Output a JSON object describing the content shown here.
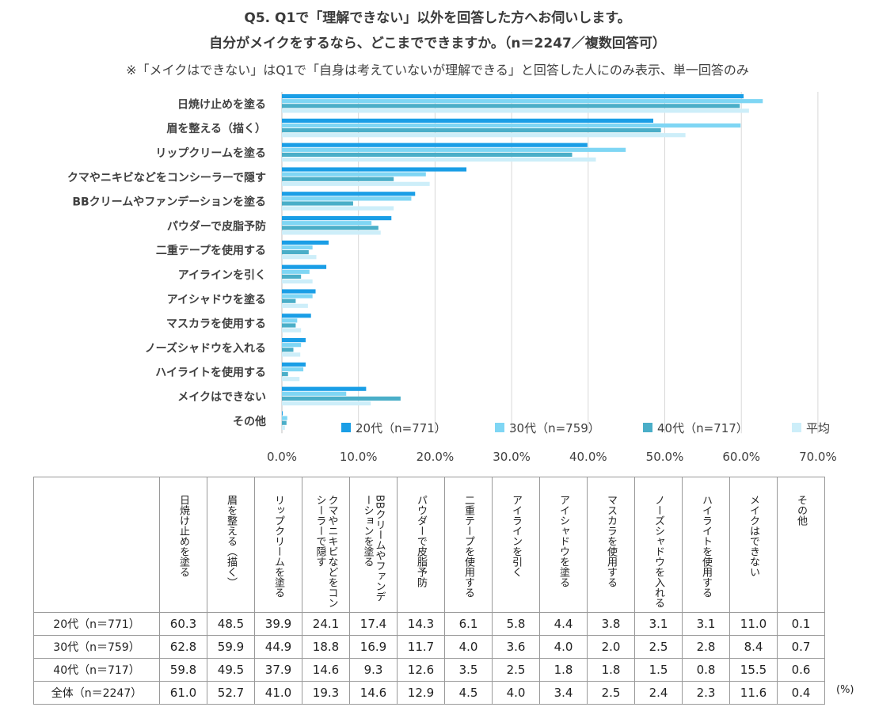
{
  "title_line1": "Q5. Q1で「理解できない」以外を回答した方へお伺いします。",
  "title_line2": "自分がメイクをするなら、どこまでできますか。（n＝2247／複数回答可）",
  "note": "※「メイクはできない」はQ1で「自身は考えていないが理解できる」と回答した人にのみ表示、単一回答のみ",
  "unit_label": "(%)",
  "table_corner": "",
  "colors": {
    "s20": "#1a9ee6",
    "s30": "#7fd6f4",
    "s40": "#4aaec8",
    "avg": "#cdeef9",
    "grid": "#d9d9d9",
    "axis": "#bfbfbf"
  },
  "chart_data": {
    "type": "bar",
    "orientation": "horizontal",
    "categories": [
      "日焼け止めを塗る",
      "眉を整える（描く）",
      "リップクリームを塗る",
      "クマやニキビなどをコンシーラーで隠す",
      "BBクリームやファンデーションを塗る",
      "パウダーで皮脂予防",
      "二重テープを使用する",
      "アイラインを引く",
      "アイシャドウを塗る",
      "マスカラを使用する",
      "ノーズシャドウを入れる",
      "ハイライトを使用する",
      "メイクはできない",
      "その他"
    ],
    "series": [
      {
        "name": "20代（n=771）",
        "values": [
          60.3,
          48.5,
          39.9,
          24.1,
          17.4,
          14.3,
          6.1,
          5.8,
          4.4,
          3.8,
          3.1,
          3.1,
          11.0,
          0.1
        ]
      },
      {
        "name": "30代（n=759）",
        "values": [
          62.8,
          59.9,
          44.9,
          18.8,
          16.9,
          11.7,
          4.0,
          3.6,
          4.0,
          2.0,
          2.5,
          2.8,
          8.4,
          0.7
        ]
      },
      {
        "name": "40代（n=717）",
        "values": [
          59.8,
          49.5,
          37.9,
          14.6,
          9.3,
          12.6,
          3.5,
          2.5,
          1.8,
          1.8,
          1.5,
          0.8,
          15.5,
          0.6
        ]
      },
      {
        "name": "平均",
        "values": [
          61.0,
          52.7,
          41.0,
          19.3,
          14.6,
          12.9,
          4.5,
          4.0,
          3.4,
          2.5,
          2.4,
          2.3,
          11.6,
          0.4
        ]
      }
    ],
    "x_ticks": [
      "0.0%",
      "10.0%",
      "20.0%",
      "30.0%",
      "40.0%",
      "50.0%",
      "60.0%",
      "70.0%"
    ],
    "xlim": [
      0,
      70
    ],
    "grid": true,
    "legend_position": "bottom-right"
  },
  "table": {
    "headers": [
      "日焼け止めを塗る",
      "眉を整える（描く）",
      "リップクリームを塗る",
      "クマやニキビなどをコンシーラーで隠す",
      "BBクリームやファンデーションを塗る",
      "パウダーで皮脂予防",
      "二重テープを使用する",
      "アイラインを引く",
      "アイシャドウを塗る",
      "マスカラを使用する",
      "ノーズシャドウを入れる",
      "ハイライトを使用する",
      "メイクはできない",
      "その他"
    ],
    "rows": [
      {
        "label": "20代（n＝771）",
        "values": [
          "60.3",
          "48.5",
          "39.9",
          "24.1",
          "17.4",
          "14.3",
          "6.1",
          "5.8",
          "4.4",
          "3.8",
          "3.1",
          "3.1",
          "11.0",
          "0.1"
        ]
      },
      {
        "label": "30代（n＝759）",
        "values": [
          "62.8",
          "59.9",
          "44.9",
          "18.8",
          "16.9",
          "11.7",
          "4.0",
          "3.6",
          "4.0",
          "2.0",
          "2.5",
          "2.8",
          "8.4",
          "0.7"
        ]
      },
      {
        "label": "40代（n＝717）",
        "values": [
          "59.8",
          "49.5",
          "37.9",
          "14.6",
          "9.3",
          "12.6",
          "3.5",
          "2.5",
          "1.8",
          "1.8",
          "1.5",
          "0.8",
          "15.5",
          "0.6"
        ]
      },
      {
        "label": "全体（n＝2247）",
        "values": [
          "61.0",
          "52.7",
          "41.0",
          "19.3",
          "14.6",
          "12.9",
          "4.5",
          "4.0",
          "3.4",
          "2.5",
          "2.4",
          "2.3",
          "11.6",
          "0.4"
        ]
      }
    ]
  }
}
